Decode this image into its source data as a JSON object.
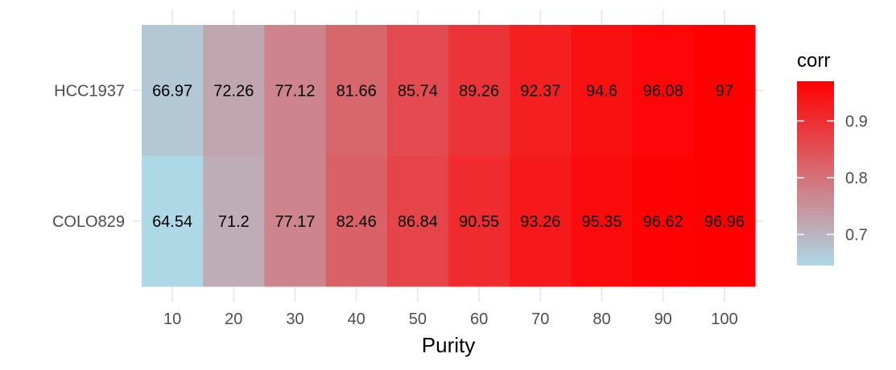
{
  "chart_data": {
    "type": "heatmap",
    "title": "",
    "xlabel": "Purity",
    "ylabel": "",
    "x_categories": [
      "10",
      "20",
      "30",
      "40",
      "50",
      "60",
      "70",
      "80",
      "90",
      "100"
    ],
    "y_categories": [
      "HCC1937",
      "COLO829"
    ],
    "values": [
      [
        66.97,
        72.26,
        77.12,
        81.66,
        85.74,
        89.26,
        92.37,
        94.6,
        96.08,
        97
      ],
      [
        64.54,
        71.2,
        77.17,
        82.46,
        86.84,
        90.55,
        93.26,
        95.35,
        96.62,
        96.96
      ]
    ],
    "cell_labels": [
      [
        "66.97",
        "72.26",
        "77.12",
        "81.66",
        "85.74",
        "89.26",
        "92.37",
        "94.6",
        "96.08",
        "97"
      ],
      [
        "64.54",
        "71.2",
        "77.17",
        "82.46",
        "86.84",
        "90.55",
        "93.26",
        "95.35",
        "96.62",
        "96.96"
      ]
    ],
    "legend": {
      "title": "corr",
      "min": 0.6454,
      "max": 0.97,
      "ticks": [
        0.7,
        0.8,
        0.9
      ],
      "tick_labels": [
        "0.7",
        "0.8",
        "0.9"
      ],
      "low_color": "#add8e6",
      "high_color": "#ff0000",
      "placement": "right"
    },
    "grid": true
  }
}
